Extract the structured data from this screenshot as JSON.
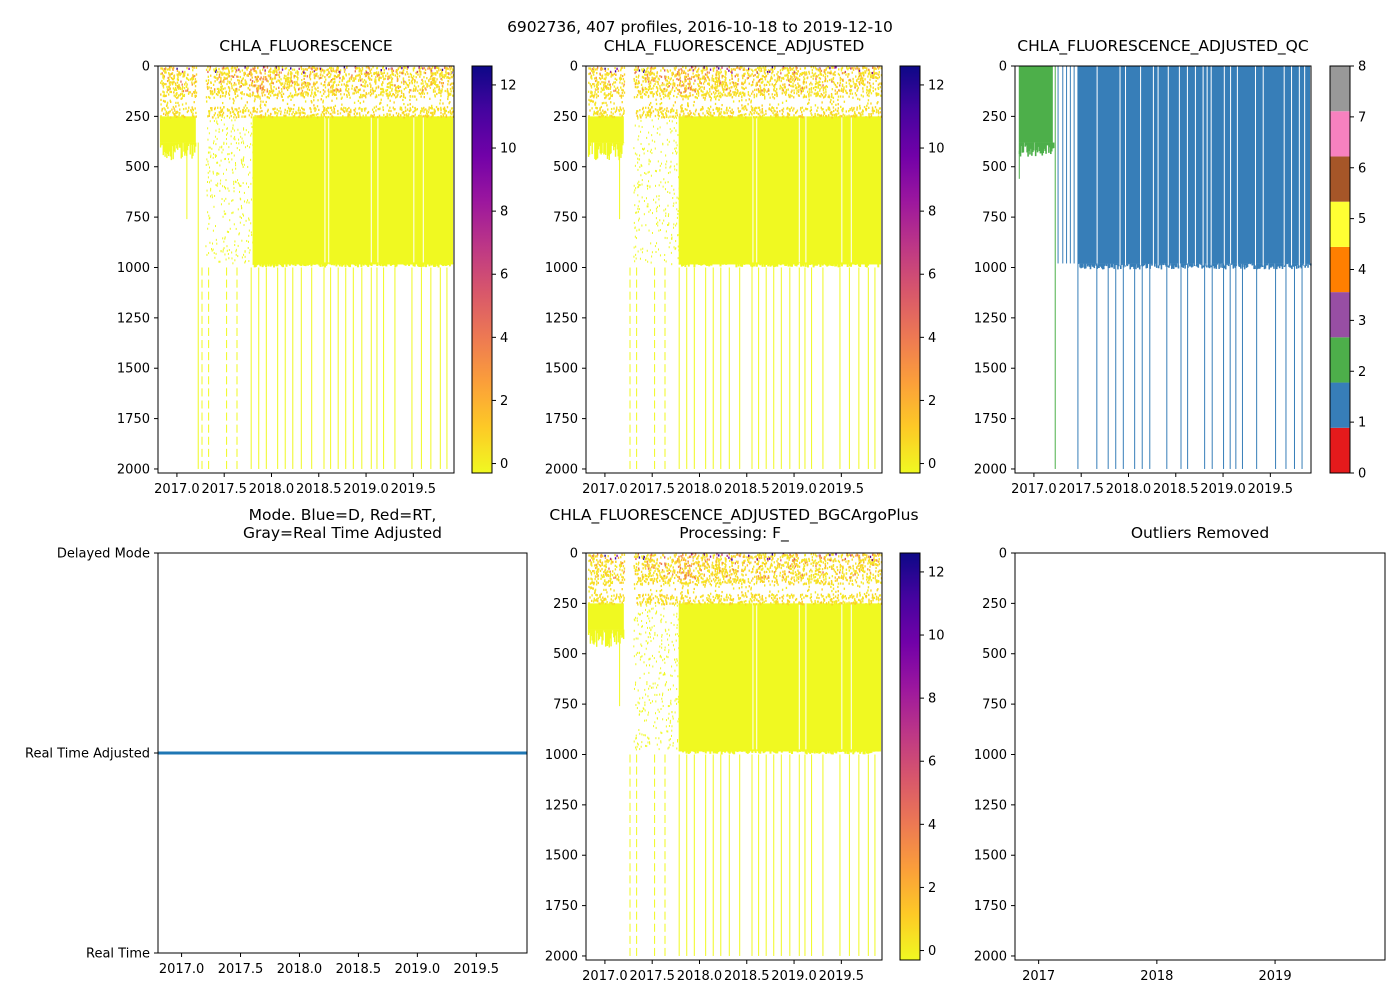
{
  "figure": {
    "title": "6902736, 407 profiles, 2016-10-18 to 2019-12-10"
  },
  "colors": {
    "plasma_r": [
      "#f0f921",
      "#fdca26",
      "#fb9f3a",
      "#ed7953",
      "#d8576b",
      "#bd3786",
      "#9c179e",
      "#7201a8",
      "#46039f",
      "#0d0887"
    ],
    "qc": [
      "#e41a1c",
      "#377eb8",
      "#4daf4a",
      "#984ea3",
      "#ff7f00",
      "#ffff33",
      "#a65628",
      "#f781bf",
      "#999999"
    ],
    "mode_line": "#1f77b4"
  },
  "chart_data": [
    {
      "id": "chla",
      "type": "heatmap",
      "title": "CHLA_FLUORESCENCE",
      "xlim": [
        2016.8,
        2019.93
      ],
      "ylim": [
        2020,
        0
      ],
      "xticks": [
        2017.0,
        2017.5,
        2018.0,
        2018.5,
        2019.0,
        2019.5
      ],
      "xtick_labels": [
        "2017.0",
        "2017.5",
        "2018.0",
        "2018.5",
        "2019.0",
        "2019.5"
      ],
      "yticks": [
        0,
        250,
        500,
        750,
        1000,
        1250,
        1500,
        1750,
        2000
      ],
      "ytick_labels": [
        "0",
        "250",
        "500",
        "750",
        "1000",
        "1250",
        "1500",
        "1750",
        "2000"
      ],
      "colorbar": {
        "cmap": "plasma_r",
        "range": [
          -0.3,
          12.6
        ],
        "ticks": [
          0,
          2,
          4,
          6,
          8,
          10,
          12
        ],
        "tick_labels": [
          "0",
          "2",
          "4",
          "6",
          "8",
          "10",
          "12"
        ]
      }
    },
    {
      "id": "chla_adj",
      "type": "heatmap",
      "title": "CHLA_FLUORESCENCE_ADJUSTED",
      "xlim": [
        2016.8,
        2019.93
      ],
      "ylim": [
        2020,
        0
      ],
      "xticks": [
        2017.0,
        2017.5,
        2018.0,
        2018.5,
        2019.0,
        2019.5
      ],
      "xtick_labels": [
        "2017.0",
        "2017.5",
        "2018.0",
        "2018.5",
        "2019.0",
        "2019.5"
      ],
      "yticks": [
        0,
        250,
        500,
        750,
        1000,
        1250,
        1500,
        1750,
        2000
      ],
      "ytick_labels": [
        "0",
        "250",
        "500",
        "750",
        "1000",
        "1250",
        "1500",
        "1750",
        "2000"
      ],
      "colorbar": {
        "cmap": "plasma_r",
        "range": [
          -0.3,
          12.6
        ],
        "ticks": [
          0,
          2,
          4,
          6,
          8,
          10,
          12
        ],
        "tick_labels": [
          "0",
          "2",
          "4",
          "6",
          "8",
          "10",
          "12"
        ]
      }
    },
    {
      "id": "qc",
      "type": "heatmap",
      "title": "CHLA_FLUORESCENCE_ADJUSTED_QC",
      "xlim": [
        2016.8,
        2019.93
      ],
      "ylim": [
        2020,
        0
      ],
      "xticks": [
        2017.0,
        2017.5,
        2018.0,
        2018.5,
        2019.0,
        2019.5
      ],
      "xtick_labels": [
        "2017.0",
        "2017.5",
        "2018.0",
        "2018.5",
        "2019.0",
        "2019.5"
      ],
      "yticks": [
        0,
        250,
        500,
        750,
        1000,
        1250,
        1500,
        1750,
        2000
      ],
      "ytick_labels": [
        "0",
        "250",
        "500",
        "750",
        "1000",
        "1250",
        "1500",
        "1750",
        "2000"
      ],
      "qc_segments": [
        {
          "x": [
            2016.84,
            2017.2
          ],
          "qc": 2,
          "depth": 380
        },
        {
          "x": [
            2017.46,
            2019.92
          ],
          "qc": 1,
          "depth": 980
        }
      ],
      "colorbar": {
        "cmap": "qc",
        "range": [
          0,
          8
        ],
        "ticks": [
          0,
          1,
          2,
          3,
          4,
          5,
          6,
          7,
          8
        ],
        "tick_labels": [
          "0",
          "1",
          "2",
          "3",
          "4",
          "5",
          "6",
          "7",
          "8"
        ]
      }
    },
    {
      "id": "mode",
      "type": "line",
      "title_lines": [
        "Mode. Blue=D, Red=RT,",
        "Gray=Real Time Adjusted"
      ],
      "xlim": [
        2016.8,
        2019.93
      ],
      "xticks": [
        2017.0,
        2017.5,
        2018.0,
        2018.5,
        2019.0,
        2019.5
      ],
      "xtick_labels": [
        "2017.0",
        "2017.5",
        "2018.0",
        "2018.5",
        "2019.0",
        "2019.5"
      ],
      "ylim": [
        0,
        2
      ],
      "yticks": [
        2,
        1,
        0
      ],
      "ytick_labels": [
        "Delayed Mode",
        "Real Time Adjusted",
        "Real Time"
      ],
      "series": [
        {
          "name": "mode",
          "x": [
            2016.8,
            2019.93
          ],
          "y": [
            1,
            1
          ]
        }
      ]
    },
    {
      "id": "bgc",
      "type": "heatmap",
      "title_lines": [
        "CHLA_FLUORESCENCE_ADJUSTED_BGCArgoPlus",
        "Processing: F_"
      ],
      "xlim": [
        2016.8,
        2019.93
      ],
      "ylim": [
        2020,
        0
      ],
      "xticks": [
        2017.0,
        2017.5,
        2018.0,
        2018.5,
        2019.0,
        2019.5
      ],
      "xtick_labels": [
        "2017.0",
        "2017.5",
        "2018.0",
        "2018.5",
        "2019.0",
        "2019.5"
      ],
      "yticks": [
        0,
        250,
        500,
        750,
        1000,
        1250,
        1500,
        1750,
        2000
      ],
      "ytick_labels": [
        "0",
        "250",
        "500",
        "750",
        "1000",
        "1250",
        "1500",
        "1750",
        "2000"
      ],
      "colorbar": {
        "cmap": "plasma_r",
        "range": [
          -0.3,
          12.6
        ],
        "ticks": [
          0,
          2,
          4,
          6,
          8,
          10,
          12
        ],
        "tick_labels": [
          "0",
          "2",
          "4",
          "6",
          "8",
          "10",
          "12"
        ]
      }
    },
    {
      "id": "outliers",
      "type": "scatter",
      "title": "Outliers Removed",
      "xlim": [
        2016.8,
        2019.93
      ],
      "ylim": [
        2020,
        0
      ],
      "xticks": [
        2017,
        2018,
        2019
      ],
      "xtick_labels": [
        "2017",
        "2018",
        "2019"
      ],
      "yticks": [
        0,
        250,
        500,
        750,
        1000,
        1250,
        1500,
        1750,
        2000
      ],
      "ytick_labels": [
        "0",
        "250",
        "500",
        "750",
        "1000",
        "1250",
        "1500",
        "1750",
        "2000"
      ],
      "points": []
    }
  ]
}
